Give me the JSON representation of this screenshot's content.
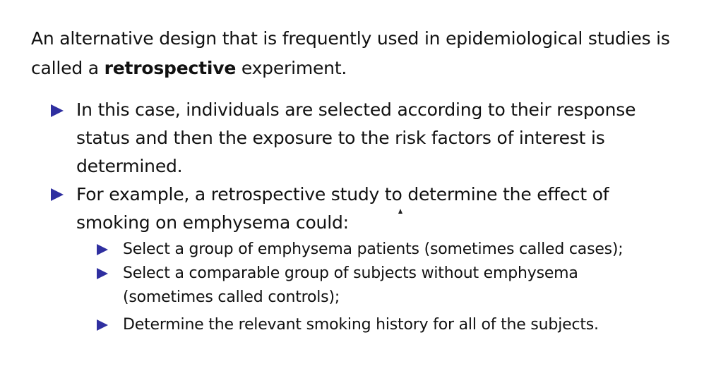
{
  "intro": {
    "before": "An alternative design that is frequently used in epidemiological studies is called a ",
    "bold": "retrospective",
    "after": " experiment."
  },
  "bullets": [
    {
      "line1": "In this case, individuals are selected according to their response",
      "line2": "status and then the exposure to the risk factors of interest is",
      "line3": "determined."
    },
    {
      "line1": "For example, a retrospective study to determine the effect of",
      "line2": "smoking on emphysema could:"
    }
  ],
  "sub_bullets": [
    {
      "line1": "Select a group of emphysema patients (sometimes called cases);"
    },
    {
      "line1": "Select a comparable group of subjects without emphysema",
      "line2": "(sometimes called controls);"
    },
    {
      "line1": "Determine the relevant smoking history for all of the subjects."
    }
  ],
  "colors": {
    "bullet": "#2f2fa0",
    "text": "#111111",
    "background": "#ffffff"
  },
  "icons": {
    "bullet": "triangle-right-icon",
    "pointer": "mouse-cursor-icon"
  }
}
